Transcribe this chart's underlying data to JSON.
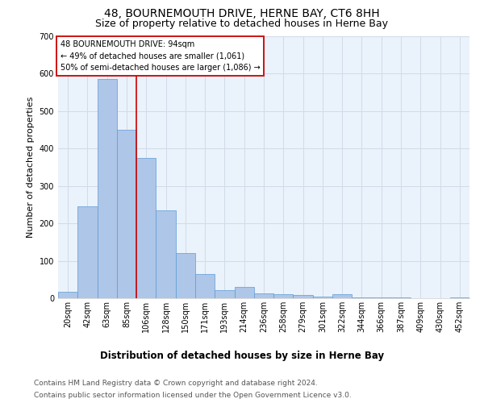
{
  "title": "48, BOURNEMOUTH DRIVE, HERNE BAY, CT6 8HH",
  "subtitle": "Size of property relative to detached houses in Herne Bay",
  "xlabel": "Distribution of detached houses by size in Herne Bay",
  "ylabel": "Number of detached properties",
  "bar_labels": [
    "20sqm",
    "42sqm",
    "63sqm",
    "85sqm",
    "106sqm",
    "128sqm",
    "150sqm",
    "171sqm",
    "193sqm",
    "214sqm",
    "236sqm",
    "258sqm",
    "279sqm",
    "301sqm",
    "322sqm",
    "344sqm",
    "366sqm",
    "387sqm",
    "409sqm",
    "430sqm",
    "452sqm"
  ],
  "bar_values": [
    18,
    245,
    585,
    450,
    375,
    235,
    120,
    65,
    22,
    30,
    13,
    10,
    8,
    5,
    10,
    3,
    3,
    2,
    1,
    0,
    2
  ],
  "bar_color": "#aec6e8",
  "bar_edge_color": "#5b9bd5",
  "vline_index": 3,
  "vline_color": "#cc0000",
  "annotation_text": "48 BOURNEMOUTH DRIVE: 94sqm\n← 49% of detached houses are smaller (1,061)\n50% of semi-detached houses are larger (1,086) →",
  "annotation_box_color": "#ffffff",
  "annotation_box_edge": "#cc0000",
  "ylim": [
    0,
    700
  ],
  "yticks": [
    0,
    100,
    200,
    300,
    400,
    500,
    600,
    700
  ],
  "grid_color": "#d0dce8",
  "bg_color": "#eaf2fb",
  "footer_line1": "Contains HM Land Registry data © Crown copyright and database right 2024.",
  "footer_line2": "Contains public sector information licensed under the Open Government Licence v3.0.",
  "title_fontsize": 10,
  "subtitle_fontsize": 9,
  "ylabel_fontsize": 8,
  "xlabel_fontsize": 8.5,
  "annotation_fontsize": 7,
  "tick_fontsize": 7,
  "footer_fontsize": 6.5
}
